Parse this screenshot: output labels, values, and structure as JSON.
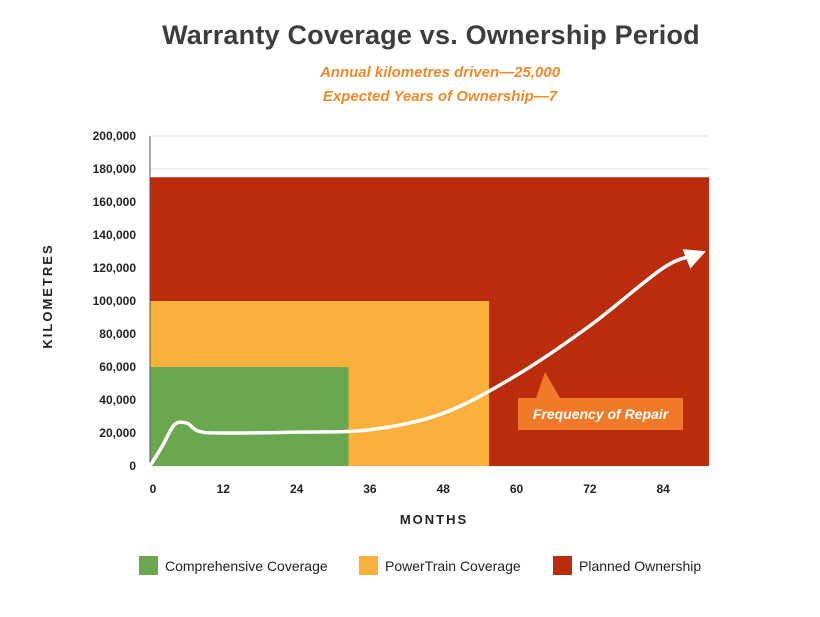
{
  "chart_data": {
    "type": "area",
    "title": "Warranty Coverage vs. Ownership Period",
    "subtitle_lines": [
      "Annual kilometres driven—25,000",
      "Expected Years of Ownership—7"
    ],
    "xlabel": "MONTHS",
    "ylabel": "KILOMETRES",
    "xlim": [
      0,
      91.5
    ],
    "ylim": [
      0,
      200000
    ],
    "x_ticks": [
      0,
      12,
      24,
      36,
      48,
      60,
      72,
      84
    ],
    "x_tick_labels": [
      "0",
      "12",
      "24",
      "36",
      "48",
      "60",
      "72",
      "84"
    ],
    "y_ticks": [
      0,
      20000,
      40000,
      60000,
      80000,
      100000,
      120000,
      140000,
      160000,
      180000,
      200000
    ],
    "y_tick_labels": [
      "0",
      "20,000",
      "40,000",
      "60,000",
      "80,000",
      "100,000",
      "120,000",
      "140,000",
      "160,000",
      "180,000",
      "200,000"
    ],
    "grid": true,
    "legend_position": "bottom",
    "series": [
      {
        "name": "Planned Ownership",
        "color": "#bb2c0c",
        "months": 91.5,
        "kilometres": 175000
      },
      {
        "name": "PowerTrain Coverage",
        "color": "#fbb03b",
        "months": 55.5,
        "kilometres": 100000
      },
      {
        "name": "Comprehensive Coverage",
        "color": "#6aa84f",
        "months": 32.5,
        "kilometres": 60000
      }
    ],
    "curve": {
      "label": "Frequency of Repair",
      "label_color": "#f07a28",
      "points": [
        [
          0,
          0
        ],
        [
          2,
          12000
        ],
        [
          4,
          25000
        ],
        [
          6,
          26000
        ],
        [
          8,
          21000
        ],
        [
          12,
          20000
        ],
        [
          24,
          20500
        ],
        [
          36,
          22000
        ],
        [
          48,
          32000
        ],
        [
          60,
          55000
        ],
        [
          72,
          85000
        ],
        [
          84,
          120000
        ],
        [
          89.5,
          128000
        ]
      ]
    }
  }
}
